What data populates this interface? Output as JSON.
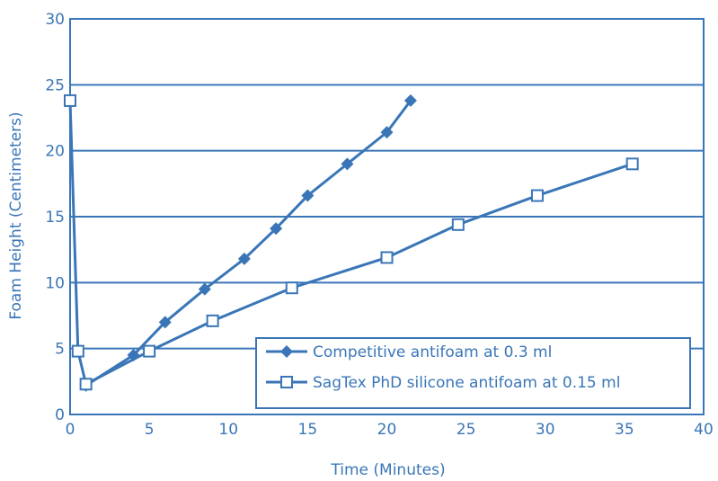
{
  "chart_data": {
    "type": "line",
    "xlabel": "Time (Minutes)",
    "ylabel": "Foam Height (Centimeters)",
    "xlim": [
      0,
      40
    ],
    "ylim": [
      0,
      30
    ],
    "xticks": [
      "0",
      "5",
      "10",
      "15",
      "20",
      "25",
      "30",
      "35",
      "40"
    ],
    "yticks": [
      "0",
      "5",
      "10",
      "15",
      "20",
      "25",
      "30"
    ],
    "grid": "horizontal",
    "legend_position": "bottom-right",
    "colors": {
      "series": "#3a76b7",
      "frame": "#3a76b7"
    },
    "series": [
      {
        "name": "Competitive antifoam at 0.3 ml",
        "marker": "filled-diamond",
        "x": [
          1,
          4,
          6,
          8.5,
          11,
          13,
          15,
          17.5,
          20,
          21.5
        ],
        "y": [
          2.2,
          4.5,
          7,
          9.5,
          11.8,
          14.1,
          16.6,
          19,
          21.4,
          23.8
        ]
      },
      {
        "name": "SagTex PhD silicone antifoam at 0.15 ml",
        "marker": "open-square",
        "x": [
          0,
          0.5,
          1,
          5,
          9,
          14,
          20,
          24.5,
          29.5,
          35.5
        ],
        "y": [
          23.8,
          4.8,
          2.3,
          4.8,
          7.1,
          9.6,
          11.9,
          14.4,
          16.6,
          19
        ]
      }
    ]
  }
}
